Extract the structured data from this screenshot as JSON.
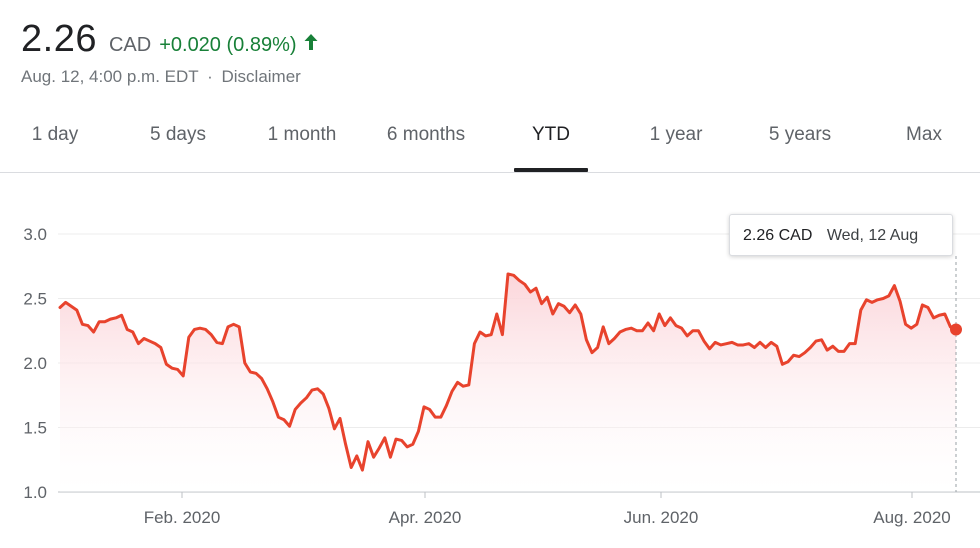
{
  "header": {
    "price": "2.26",
    "currency": "CAD",
    "change": "+0.020 (0.89%)",
    "change_direction": "up",
    "timestamp": "Aug. 12, 4:00 p.m. EDT",
    "separator": "·",
    "disclaimer": "Disclaimer",
    "colors": {
      "up": "#188038"
    }
  },
  "tabs": [
    {
      "label": "1 day",
      "active": false
    },
    {
      "label": "5 days",
      "active": false
    },
    {
      "label": "1 month",
      "active": false
    },
    {
      "label": "6 months",
      "active": false
    },
    {
      "label": "YTD",
      "active": true
    },
    {
      "label": "1 year",
      "active": false
    },
    {
      "label": "5 years",
      "active": false
    },
    {
      "label": "Max",
      "active": false
    }
  ],
  "tooltip": {
    "price": "2.26 CAD",
    "date": "Wed, 12 Aug"
  },
  "chart_data": {
    "type": "area",
    "title": "",
    "xlabel": "",
    "ylabel": "",
    "ylim": [
      1.0,
      3.0
    ],
    "y_ticks": [
      "3.0",
      "2.5",
      "2.0",
      "1.5",
      "1.0"
    ],
    "x_ticks": [
      "Feb. 2020",
      "Apr. 2020",
      "Jun. 2020",
      "Aug. 2020"
    ],
    "line_color": "#e8432d",
    "fill_color": "#fde7e9",
    "grid": true,
    "series": [
      {
        "values": [
          2.43,
          2.47,
          2.44,
          2.41,
          2.3,
          2.29,
          2.24,
          2.32,
          2.32,
          2.34,
          2.35,
          2.37,
          2.26,
          2.24,
          2.15,
          2.19,
          2.17,
          2.15,
          2.12,
          1.99,
          1.96,
          1.95,
          1.9,
          2.2,
          2.26,
          2.27,
          2.26,
          2.22,
          2.16,
          2.15,
          2.28,
          2.3,
          2.28,
          2.0,
          1.93,
          1.92,
          1.88,
          1.8,
          1.7,
          1.58,
          1.56,
          1.51,
          1.64,
          1.69,
          1.73,
          1.79,
          1.8,
          1.76,
          1.65,
          1.49,
          1.57,
          1.37,
          1.19,
          1.28,
          1.17,
          1.39,
          1.27,
          1.34,
          1.42,
          1.27,
          1.41,
          1.4,
          1.35,
          1.37,
          1.47,
          1.66,
          1.64,
          1.58,
          1.58,
          1.67,
          1.78,
          1.85,
          1.82,
          1.83,
          2.15,
          2.24,
          2.21,
          2.22,
          2.38,
          2.22,
          2.69,
          2.68,
          2.64,
          2.61,
          2.55,
          2.58,
          2.46,
          2.51,
          2.38,
          2.46,
          2.44,
          2.39,
          2.45,
          2.38,
          2.18,
          2.08,
          2.12,
          2.28,
          2.15,
          2.19,
          2.24,
          2.26,
          2.27,
          2.25,
          2.25,
          2.31,
          2.25,
          2.38,
          2.29,
          2.35,
          2.29,
          2.27,
          2.21,
          2.25,
          2.25,
          2.17,
          2.11,
          2.16,
          2.14,
          2.15,
          2.16,
          2.14,
          2.14,
          2.15,
          2.12,
          2.16,
          2.12,
          2.16,
          2.13,
          1.99,
          2.01,
          2.06,
          2.05,
          2.08,
          2.12,
          2.17,
          2.18,
          2.1,
          2.13,
          2.09,
          2.09,
          2.15,
          2.15,
          2.41,
          2.49,
          2.47,
          2.49,
          2.5,
          2.52,
          2.6,
          2.48,
          2.3,
          2.27,
          2.3,
          2.45,
          2.43,
          2.35,
          2.37,
          2.38,
          2.28,
          2.26
        ]
      }
    ]
  }
}
